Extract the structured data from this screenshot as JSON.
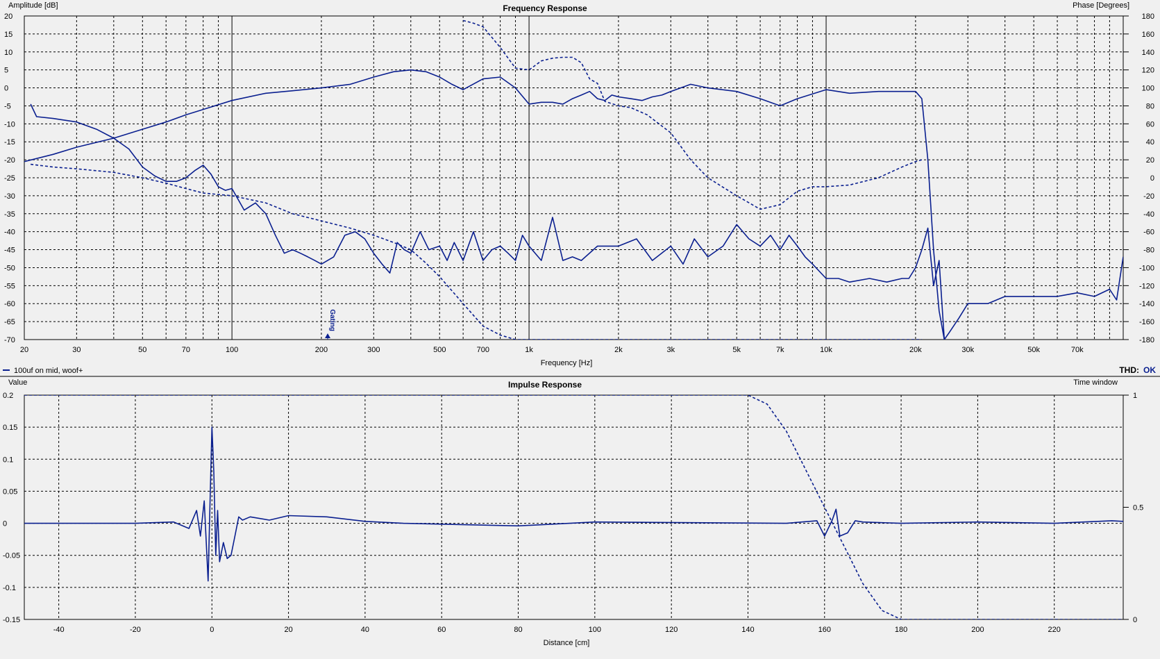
{
  "frequency_panel": {
    "title": "Frequency Response",
    "y_left_label": "Amplitude [dB]",
    "y_right_label": "Phase [Degrees]",
    "x_label": "Frequency [Hz]",
    "marker_label": "Gating",
    "legend_text": "100uf on mid, woof+",
    "thd_label": "THD:",
    "thd_value": "OK",
    "line_color": "#0a1f8f"
  },
  "impulse_panel": {
    "title": "Impulse Response",
    "y_left_label": "Value",
    "y_right_label": "Time window",
    "x_label": "Distance [cm]"
  },
  "chart_data": [
    {
      "type": "line",
      "title": "Frequency Response",
      "xlabel": "Frequency [Hz]",
      "ylabel": "Amplitude [dB]",
      "y2label": "Phase [Degrees]",
      "xscale": "log",
      "xlim": [
        20,
        100000
      ],
      "ylim": [
        -70,
        20
      ],
      "y2lim": [
        -180,
        180
      ],
      "grid": true,
      "x_ticks": [
        20,
        30,
        50,
        70,
        100,
        200,
        300,
        500,
        700,
        1000,
        2000,
        3000,
        5000,
        7000,
        10000,
        20000,
        30000,
        50000,
        70000
      ],
      "x_tick_labels": [
        "20",
        "30",
        "50",
        "70",
        "100",
        "200",
        "300",
        "500",
        "700",
        "1k",
        "2k",
        "3k",
        "5k",
        "7k",
        "10k",
        "20k",
        "30k",
        "50k",
        "70k"
      ],
      "y_ticks": [
        20,
        15,
        10,
        5,
        0,
        -5,
        -10,
        -15,
        -20,
        -25,
        -30,
        -35,
        -40,
        -45,
        -50,
        -55,
        -60,
        -65,
        -70
      ],
      "y2_ticks": [
        180,
        160,
        140,
        120,
        100,
        80,
        60,
        40,
        20,
        0,
        -20,
        -40,
        -60,
        -80,
        -100,
        -120,
        -140,
        -160,
        -180
      ],
      "gating_marker_hz": 210,
      "series": [
        {
          "name": "100uf on mid, woof+",
          "axis": "amplitude",
          "style": "solid",
          "x": [
            20,
            25,
            30,
            40,
            50,
            60,
            70,
            80,
            100,
            130,
            160,
            200,
            250,
            300,
            350,
            400,
            450,
            500,
            550,
            600,
            700,
            800,
            900,
            1000,
            1100,
            1200,
            1300,
            1400,
            1500,
            1600,
            1700,
            1800,
            1900,
            2000,
            2200,
            2400,
            2600,
            2800,
            3000,
            3500,
            4000,
            5000,
            6000,
            7000,
            8000,
            10000,
            12000,
            15000,
            18000,
            20000,
            21000,
            22000,
            23000,
            24000,
            25000
          ],
          "y": [
            -20.5,
            -18.5,
            -16.5,
            -14,
            -11.5,
            -9.5,
            -7.5,
            -6,
            -3.5,
            -1.5,
            -0.8,
            0,
            1,
            3,
            4.5,
            5,
            4.5,
            3,
            1,
            -0.5,
            2.5,
            3,
            0,
            -4.5,
            -4,
            -4,
            -4.5,
            -3,
            -2,
            -1,
            -3,
            -3.5,
            -2,
            -2.5,
            -3,
            -3.5,
            -2.5,
            -2,
            -1,
            1,
            0,
            -1,
            -3,
            -5,
            -3,
            -0.5,
            -1.5,
            -1,
            -1,
            -1,
            -3,
            -20,
            -45,
            -62,
            -70
          ]
        },
        {
          "name": "",
          "axis": "phase",
          "style": "dashed",
          "x": [
            21,
            25,
            30,
            40,
            50,
            60,
            70,
            80,
            100,
            130,
            160,
            200,
            250,
            300,
            350,
            400,
            450,
            500,
            600,
            700,
            800,
            900,
            1000,
            1100,
            1200,
            1300,
            1400,
            1500,
            1600,
            1700,
            1800,
            2000,
            2200,
            2500,
            3000,
            3500,
            4000,
            5000,
            6000,
            7000,
            8000,
            9000,
            10000,
            12000,
            15000,
            18000,
            20000,
            21000
          ],
          "y": [
            15,
            12,
            10,
            6,
            0,
            -6,
            -12,
            -17,
            -20,
            -28,
            -40,
            -48,
            -56,
            -64,
            -72,
            -80,
            -95,
            -110,
            -140,
            -165,
            -175,
            -180,
            -180,
            -180,
            -180,
            -180,
            -180,
            -180,
            -180,
            -180,
            -180,
            -180,
            -180,
            -180,
            -180,
            -180,
            -180,
            -180,
            -180,
            -180,
            -180,
            -180,
            -180,
            -180,
            -180,
            -180,
            -180,
            -180
          ]
        },
        {
          "name": "",
          "axis": "phase",
          "style": "dashed",
          "x": [
            600,
            650,
            700,
            800,
            900,
            1000,
            1100,
            1200,
            1300,
            1400,
            1500,
            1600,
            1700,
            1800,
            2000,
            2200,
            2500,
            3000,
            3500,
            4000,
            5000,
            6000,
            7000,
            8000,
            9000,
            10000,
            12000,
            15000,
            18000,
            20000,
            21000
          ],
          "y": [
            175,
            172,
            168,
            145,
            122,
            120,
            130,
            133,
            134,
            134,
            128,
            110,
            105,
            85,
            80,
            78,
            70,
            50,
            20,
            0,
            -20,
            -35,
            -30,
            -15,
            -10,
            -10,
            -8,
            0,
            12,
            18,
            20
          ]
        },
        {
          "name": "",
          "axis": "amplitude",
          "style": "solid",
          "x": [
            21,
            22,
            25,
            30,
            35,
            40,
            45,
            50,
            55,
            60,
            65,
            70,
            75,
            80,
            85,
            90,
            95,
            100,
            110,
            120,
            130,
            140,
            150,
            160,
            170,
            180,
            190,
            200,
            220,
            240,
            260,
            280,
            300,
            320,
            340,
            360,
            380,
            400,
            430,
            460,
            500,
            530,
            560,
            600,
            650,
            700,
            750,
            800,
            850,
            900,
            950,
            1000,
            1100,
            1200,
            1300,
            1400,
            1500,
            1700,
            2000,
            2300,
            2600,
            3000,
            3300,
            3600,
            4000,
            4500,
            5000,
            5500,
            6000,
            6500,
            7000,
            7500,
            8000,
            8500,
            9000,
            10000,
            11000,
            12000,
            14000,
            16000,
            18000,
            19000,
            20000,
            21000,
            22000,
            23000,
            24000,
            25000,
            26000,
            28000,
            30000,
            35000,
            40000,
            50000,
            60000,
            70000,
            80000,
            90000,
            95000,
            100000
          ],
          "y": [
            -4.5,
            -8,
            -8.5,
            -9.5,
            -11.5,
            -14,
            -17,
            -22,
            -24.5,
            -26,
            -26,
            -25,
            -23,
            -21.5,
            -24,
            -27.5,
            -28.5,
            -28,
            -34,
            -32,
            -35,
            -41,
            -46,
            -45,
            -46,
            -47,
            -48,
            -49,
            -47,
            -41,
            -40,
            -42,
            -46,
            -49,
            -51.5,
            -43,
            -45,
            -46,
            -40,
            -45,
            -44,
            -48,
            -43,
            -48,
            -40,
            -48,
            -45,
            -44,
            -46,
            -48,
            -41,
            -44,
            -48,
            -36,
            -48,
            -47,
            -48,
            -44,
            -44,
            -42,
            -48,
            -44,
            -49,
            -42,
            -47,
            -44,
            -38,
            -42,
            -44,
            -41,
            -45,
            -41,
            -44,
            -47,
            -49,
            -53,
            -53,
            -54,
            -53,
            -54,
            -53,
            -53,
            -50,
            -45,
            -39,
            -55,
            -48,
            -70,
            -68,
            -64,
            -60,
            -60,
            -58,
            -58,
            -58,
            -57,
            -58,
            -56,
            -59,
            -47
          ]
        }
      ]
    },
    {
      "type": "line",
      "title": "Impulse Response",
      "xlabel": "Distance [cm]",
      "ylabel": "Value",
      "y2label": "Time window",
      "xlim": [
        -49,
        238
      ],
      "ylim": [
        -0.15,
        0.2
      ],
      "y2lim": [
        0,
        1
      ],
      "grid": true,
      "x_ticks": [
        -40,
        -20,
        0,
        20,
        40,
        60,
        80,
        100,
        120,
        140,
        160,
        180,
        200,
        220
      ],
      "y_ticks": [
        0.2,
        0.15,
        0.1,
        0.05,
        0,
        -0.05,
        -0.1,
        -0.15
      ],
      "y2_ticks": [
        1,
        0.5,
        0
      ],
      "series": [
        {
          "name": "100uf on mid, woof+",
          "axis": "value",
          "style": "solid",
          "x": [
            -49,
            -20,
            -10,
            -6,
            -4,
            -3,
            -2,
            -1,
            -0.5,
            0,
            0.5,
            1,
            1.5,
            2,
            3,
            4,
            5,
            6,
            7,
            8,
            10,
            15,
            20,
            30,
            40,
            50,
            80,
            100,
            150,
            158,
            160,
            162,
            163,
            164,
            166,
            168,
            170,
            180,
            200,
            220,
            235,
            238
          ],
          "y": [
            0,
            0,
            0.002,
            -0.008,
            0.02,
            -0.02,
            0.035,
            -0.09,
            0.03,
            0.15,
            0.08,
            -0.05,
            0.02,
            -0.06,
            -0.03,
            -0.055,
            -0.05,
            -0.02,
            0.01,
            0.005,
            0.01,
            0.005,
            0.012,
            0.01,
            0.003,
            0,
            -0.004,
            0.002,
            0,
            0.004,
            -0.02,
            0.005,
            0.022,
            -0.02,
            -0.015,
            0.004,
            0.002,
            0,
            0.002,
            0,
            0.004,
            0.003
          ]
        },
        {
          "name": "",
          "axis": "time_window",
          "style": "dashed",
          "x": [
            -49,
            140,
            145,
            150,
            155,
            160,
            165,
            170,
            175,
            180,
            238
          ],
          "y": [
            1,
            1,
            0.96,
            0.84,
            0.67,
            0.5,
            0.33,
            0.16,
            0.04,
            0,
            0
          ]
        }
      ]
    }
  ]
}
